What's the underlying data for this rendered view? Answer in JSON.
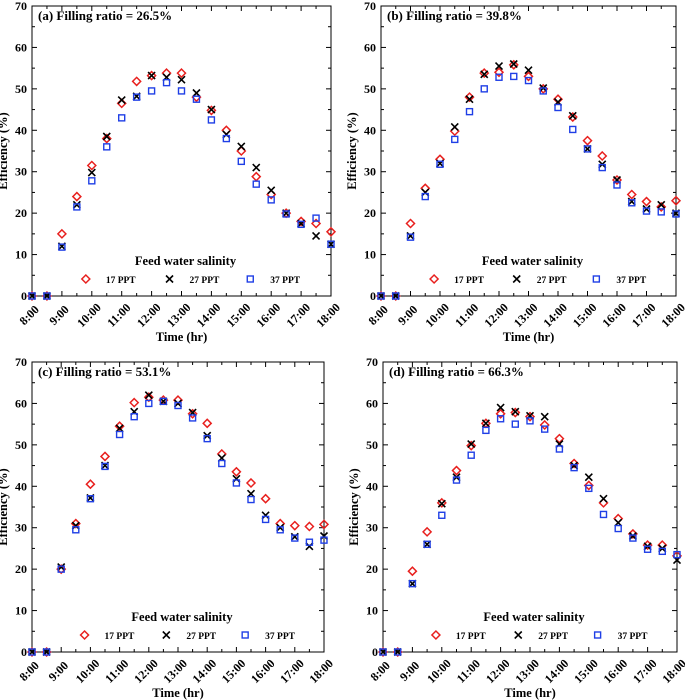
{
  "colors": {
    "s17": "#e8201e",
    "s27": "#000000",
    "s37": "#1f3fe6"
  },
  "chart_data": [
    {
      "type": "scatter",
      "title": "(a) Filling ratio = 26.5%",
      "xlabel": "Time (hr)",
      "ylabel": "Efficiency (%)",
      "xlim": [
        8,
        18
      ],
      "ylim": [
        0,
        70
      ],
      "xticks": [
        "8:00",
        "9:00",
        "10:00",
        "11:00",
        "12:00",
        "13:00",
        "14:00",
        "15:00",
        "16:00",
        "17:00",
        "18:00"
      ],
      "yticks": [
        0,
        10,
        20,
        30,
        40,
        50,
        60,
        70
      ],
      "legend_title": "Feed water salinity",
      "x": [
        8,
        8.5,
        9,
        9.5,
        10,
        10.5,
        11,
        11.5,
        12,
        12.5,
        13,
        13.5,
        14,
        14.5,
        15,
        15.5,
        16,
        16.5,
        17,
        17.5,
        18
      ],
      "series": [
        {
          "name": "17 PPT",
          "marker": "diamond",
          "values": [
            0,
            0,
            15,
            24,
            31.5,
            38,
            46.5,
            51.8,
            53.2,
            53.8,
            53.8,
            48,
            44.8,
            40,
            35,
            28.8,
            24.5,
            20,
            18,
            17.5,
            15.5
          ]
        },
        {
          "name": "27 PPT",
          "marker": "cross",
          "values": [
            0,
            0,
            12,
            22,
            29.8,
            38.5,
            47.3,
            48.2,
            53.2,
            52.8,
            52.2,
            49,
            45,
            39,
            36.1,
            31,
            25.5,
            20,
            17.5,
            14.5,
            12.5
          ]
        },
        {
          "name": "37 PPT",
          "marker": "square",
          "values": [
            0,
            0,
            11.8,
            21.5,
            27.8,
            36,
            43,
            48,
            49.5,
            51.5,
            49.5,
            47.5,
            42.5,
            38,
            32.5,
            27,
            23.2,
            19.8,
            17.3,
            18.8,
            12.5
          ]
        }
      ]
    },
    {
      "type": "scatter",
      "title": "(b) Filling ratio = 39.8%",
      "xlabel": "Time (hr)",
      "ylabel": "Efficiency (%)",
      "xlim": [
        8,
        18
      ],
      "ylim": [
        0,
        70
      ],
      "xticks": [
        "8:00",
        "9:00",
        "10:00",
        "11:00",
        "12:00",
        "13:00",
        "14:00",
        "15:00",
        "16:00",
        "17:00",
        "18:00"
      ],
      "yticks": [
        0,
        10,
        20,
        30,
        40,
        50,
        60,
        70
      ],
      "legend_title": "Feed water salinity",
      "x": [
        8,
        8.5,
        9,
        9.5,
        10,
        10.5,
        11,
        11.5,
        12,
        12.5,
        13,
        13.5,
        14,
        14.5,
        15,
        15.5,
        16,
        16.5,
        17,
        17.5,
        18
      ],
      "series": [
        {
          "name": "17 PPT",
          "marker": "diamond",
          "values": [
            0,
            0,
            17.5,
            26,
            33,
            39.8,
            48,
            53.8,
            54,
            55.8,
            53,
            50,
            47.5,
            43.2,
            37.5,
            33.8,
            28,
            24.5,
            22.8,
            21.5,
            23
          ]
        },
        {
          "name": "27 PPT",
          "marker": "cross",
          "values": [
            0,
            0,
            14.5,
            25,
            32,
            40.8,
            47.5,
            53.5,
            55.5,
            56,
            54.5,
            50.2,
            46.8,
            43.5,
            35.5,
            31.8,
            28,
            22.8,
            21,
            22,
            20
          ]
        },
        {
          "name": "37 PPT",
          "marker": "square",
          "values": [
            0,
            0,
            14.2,
            24,
            31.8,
            37.8,
            44.5,
            50,
            52.8,
            53,
            52,
            49.5,
            45.5,
            40.2,
            35.5,
            31,
            26.8,
            22.5,
            20.5,
            20.3,
            19.8
          ]
        }
      ]
    },
    {
      "type": "scatter",
      "title": "(c) Filling ratio = 53.1%",
      "xlabel": "Time (hr)",
      "ylabel": "Efficiency (%)",
      "xlim": [
        8,
        18
      ],
      "ylim": [
        0,
        70
      ],
      "xticks": [
        "8:00",
        "9:00",
        "10:00",
        "11:00",
        "12:00",
        "13:00",
        "14:00",
        "15:00",
        "16:00",
        "17:00",
        "18:00"
      ],
      "yticks": [
        0,
        10,
        20,
        30,
        40,
        50,
        60,
        70
      ],
      "legend_title": "Feed water salinity",
      "x": [
        8,
        8.5,
        9,
        9.5,
        10,
        10.5,
        11,
        11.5,
        12,
        12.5,
        13,
        13.5,
        14,
        14.5,
        15,
        15.5,
        16,
        16.5,
        17,
        17.5,
        18
      ],
      "series": [
        {
          "name": "17 PPT",
          "marker": "diamond",
          "values": [
            0,
            0,
            20,
            31,
            40.5,
            47.2,
            54.5,
            60.2,
            61.5,
            60.8,
            60.8,
            57.5,
            55.2,
            47.8,
            43.5,
            40.8,
            37,
            31,
            30.5,
            30.3,
            30.8
          ]
        },
        {
          "name": "27 PPT",
          "marker": "cross",
          "values": [
            0,
            0,
            20.5,
            30.5,
            37.2,
            45,
            54,
            58,
            62,
            60.5,
            60,
            57.8,
            52.2,
            46.8,
            41.8,
            38.2,
            33,
            30,
            27.8,
            25.5,
            28
          ]
        },
        {
          "name": "37 PPT",
          "marker": "square",
          "values": [
            0,
            0,
            20,
            29.5,
            37,
            44.8,
            52.5,
            56.8,
            60,
            60.5,
            59.5,
            56.5,
            51.5,
            45.5,
            40.8,
            36.8,
            32,
            29.5,
            27.5,
            26.5,
            27
          ]
        }
      ]
    },
    {
      "type": "scatter",
      "title": "(d) Filling ratio = 66.3%",
      "xlabel": "Time (hr)",
      "ylabel": "Efficiency (%)",
      "xlim": [
        8,
        18
      ],
      "ylim": [
        0,
        70
      ],
      "xticks": [
        "8:00",
        "9:00",
        "10:00",
        "11:00",
        "12:00",
        "13:00",
        "14:00",
        "15:00",
        "16:00",
        "17:00",
        "18:00"
      ],
      "yticks": [
        0,
        10,
        20,
        30,
        40,
        50,
        60,
        70
      ],
      "legend_title": "Feed water salinity",
      "x": [
        8,
        8.5,
        9,
        9.5,
        10,
        10.5,
        11,
        11.5,
        12,
        12.5,
        13,
        13.5,
        14,
        14.5,
        15,
        15.5,
        16,
        16.5,
        17,
        17.5,
        18
      ],
      "series": [
        {
          "name": "17 PPT",
          "marker": "diamond",
          "values": [
            0,
            0,
            19.5,
            29,
            36,
            43.8,
            49.8,
            55.2,
            57.5,
            57.8,
            56.8,
            54.8,
            51.5,
            45.5,
            40.2,
            36,
            32.2,
            28.5,
            25.8,
            25.8,
            23.2
          ]
        },
        {
          "name": "27 PPT",
          "marker": "cross",
          "values": [
            0,
            0,
            16.5,
            26,
            35.8,
            42.2,
            50.2,
            55.2,
            59,
            58,
            57,
            56.8,
            50.2,
            45,
            42.2,
            37,
            31.2,
            28,
            25.5,
            25,
            22.2
          ]
        },
        {
          "name": "37 PPT",
          "marker": "square",
          "values": [
            0,
            0,
            16.5,
            26,
            33,
            41.5,
            47.5,
            53.5,
            56.3,
            55,
            55.8,
            53.8,
            49,
            44.5,
            39.5,
            33.2,
            29.8,
            27.5,
            24.8,
            24.3,
            23.5
          ]
        }
      ]
    }
  ]
}
